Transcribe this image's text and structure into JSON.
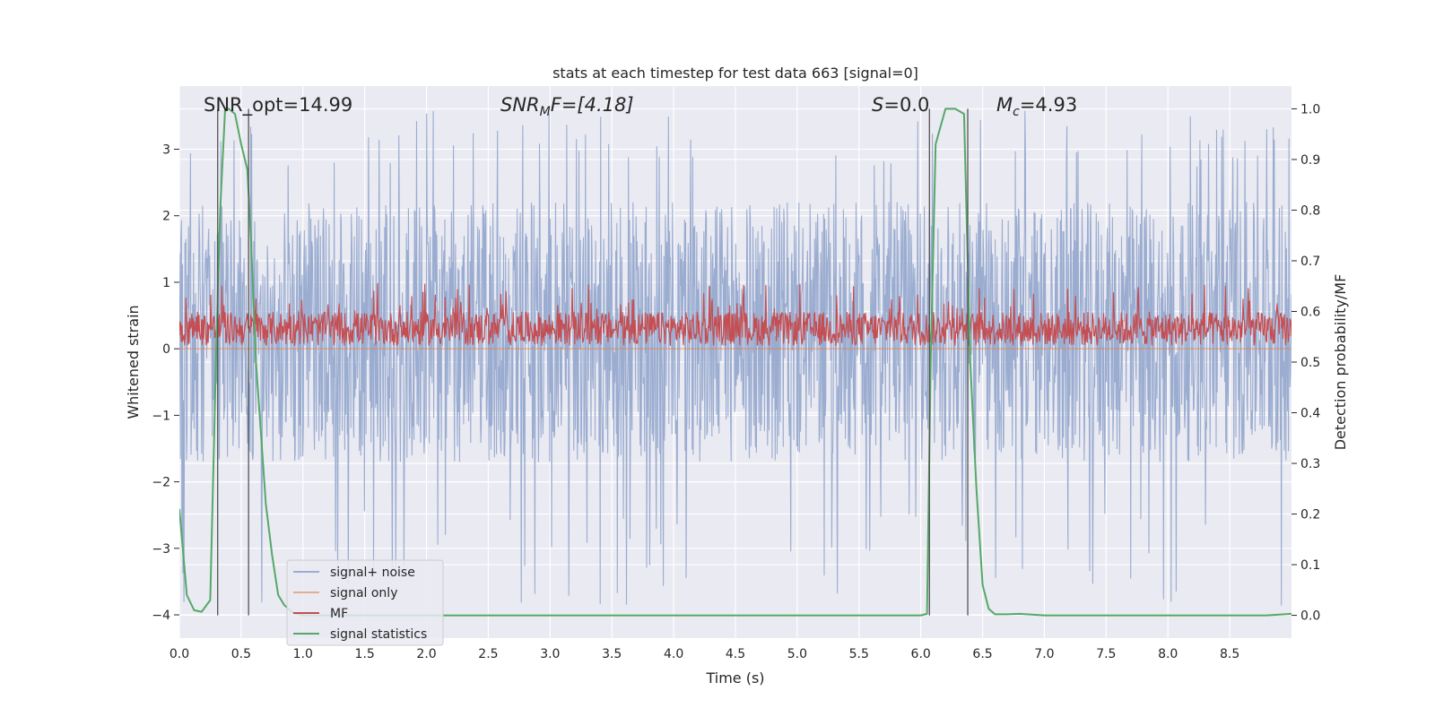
{
  "chart_data": {
    "type": "line",
    "title": "stats at each timestep for test data 663 [signal=0]",
    "xlabel": "Time (s)",
    "ylabel_left": "Whitened strain",
    "ylabel_right": "Detection probability/MF",
    "xlim": [
      0.0,
      9.0
    ],
    "ylim_left": [
      -4.35,
      3.95
    ],
    "ylim_right": [
      -0.045,
      1.045
    ],
    "x_ticks": [
      "0.0",
      "0.5",
      "1.0",
      "1.5",
      "2.0",
      "2.5",
      "3.0",
      "3.5",
      "4.0",
      "4.5",
      "5.0",
      "5.5",
      "6.0",
      "6.5",
      "7.0",
      "7.5",
      "8.0",
      "8.5"
    ],
    "y_ticks_left": [
      "3",
      "2",
      "1",
      "0",
      "−1",
      "−2",
      "−3",
      "−4"
    ],
    "y_ticks_right": [
      "1.0",
      "0.9",
      "0.8",
      "0.7",
      "0.6",
      "0.5",
      "0.4",
      "0.3",
      "0.2",
      "0.1",
      "0.0"
    ],
    "grid": true,
    "legend_position": "lower-left",
    "colors": {
      "noise": "#9aacd0",
      "signal_only": "#dd8452",
      "mf": "#c44e52",
      "statistics": "#55a868",
      "vlines": "#555555",
      "background": "#eaeaf2"
    },
    "annotations": [
      {
        "id": "snr-opt",
        "text": "SNR_opt=14.99"
      },
      {
        "id": "snr-mf",
        "pre": "SNR",
        "sub": "M",
        "post": "F=[4.18]"
      },
      {
        "id": "s-value",
        "pre": "S",
        "post": "=0.0"
      },
      {
        "id": "mc-value",
        "pre": "M",
        "sub": "c",
        "post": "=4.93"
      }
    ],
    "vertical_lines_x": [
      0.31,
      0.56,
      6.07,
      6.38
    ],
    "series": [
      {
        "name": "signal+ noise",
        "kind": "noise",
        "typical_range": [
          -1.7,
          2.2
        ],
        "max": 3.6,
        "min": -4.0
      },
      {
        "name": "signal only",
        "kind": "flat",
        "value": 0.0
      },
      {
        "name": "MF",
        "kind": "noise",
        "typical_range": [
          0.05,
          0.55
        ],
        "max": 0.98,
        "min": 0.0
      },
      {
        "name": "signal statistics",
        "kind": "line",
        "x": [
          0.0,
          0.06,
          0.12,
          0.18,
          0.25,
          0.3,
          0.33,
          0.37,
          0.4,
          0.45,
          0.5,
          0.55,
          0.58,
          0.62,
          0.66,
          0.7,
          0.75,
          0.8,
          0.85,
          0.92,
          1.0,
          1.5,
          2.0,
          2.5,
          3.0,
          3.5,
          4.0,
          4.5,
          5.0,
          5.5,
          5.8,
          6.0,
          6.05,
          6.08,
          6.12,
          6.2,
          6.28,
          6.35,
          6.4,
          6.45,
          6.5,
          6.55,
          6.6,
          6.7,
          6.8,
          7.0,
          7.5,
          8.0,
          8.5,
          8.8,
          9.0
        ],
        "y": [
          0.21,
          0.04,
          0.01,
          0.007,
          0.03,
          0.54,
          0.8,
          1.0,
          1.0,
          0.99,
          0.93,
          0.88,
          0.74,
          0.5,
          0.36,
          0.22,
          0.12,
          0.04,
          0.02,
          0.005,
          0.0,
          0.0,
          0.0,
          0.0,
          0.0,
          0.0,
          0.0,
          0.0,
          0.0,
          0.0,
          0.0,
          0.0,
          0.003,
          0.5,
          0.93,
          1.0,
          1.0,
          0.99,
          0.5,
          0.25,
          0.06,
          0.013,
          0.002,
          0.002,
          0.003,
          0.0,
          0.0,
          0.0,
          0.0,
          0.0,
          0.003
        ]
      }
    ]
  }
}
